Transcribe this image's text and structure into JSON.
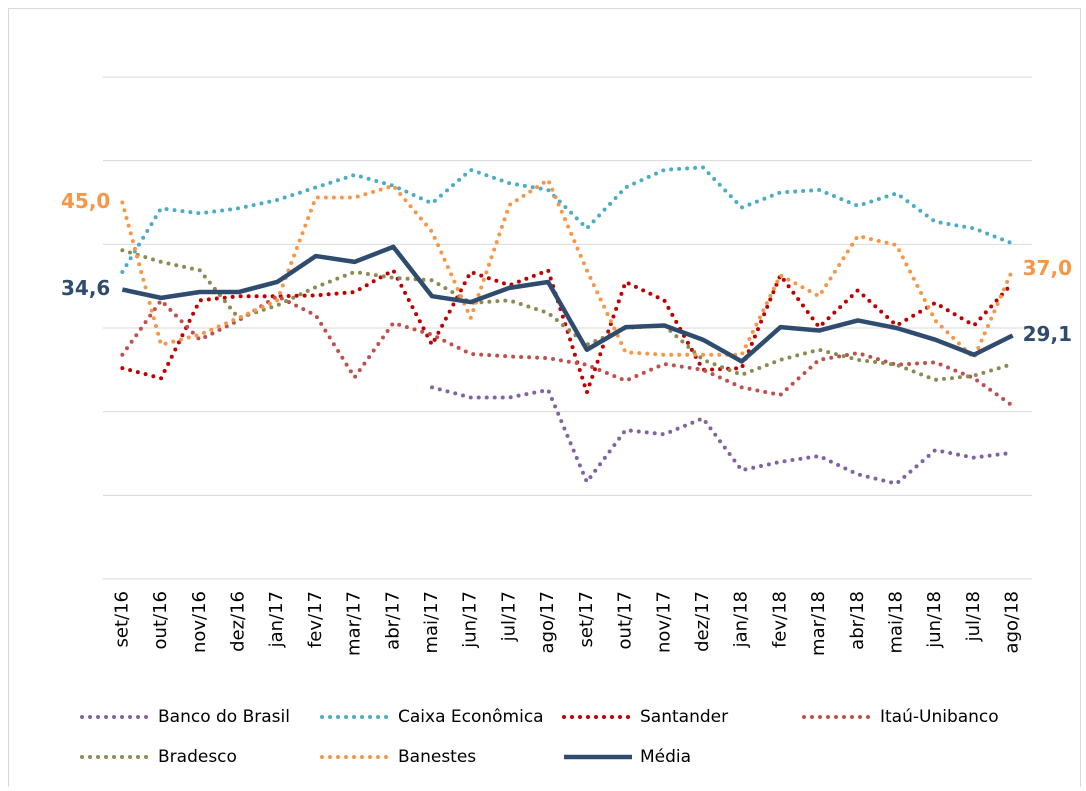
{
  "chart_data": {
    "type": "line",
    "categories": [
      "set/16",
      "out/16",
      "nov/16",
      "dez/16",
      "jan/17",
      "fev/17",
      "mar/17",
      "abr/17",
      "mai/17",
      "jun/17",
      "jul/17",
      "ago/17",
      "set/17",
      "out/17",
      "nov/17",
      "dez/17",
      "jan/18",
      "fev/18",
      "mar/18",
      "abr/18",
      "mai/18",
      "jun/18",
      "jul/18",
      "ago/18"
    ],
    "ylim": [
      0,
      60
    ],
    "yticks": [
      0,
      10,
      20,
      30,
      40,
      50,
      60
    ],
    "grid": true,
    "series": [
      {
        "name": "Banco do Brasil",
        "color": "#8064a2",
        "style": "dotted",
        "values": [
          null,
          null,
          null,
          null,
          null,
          null,
          null,
          null,
          22.9,
          21.7,
          21.7,
          22.6,
          11.6,
          17.8,
          17.3,
          19.2,
          13.0,
          14.0,
          14.7,
          12.5,
          11.4,
          15.4,
          14.5,
          15.1
        ]
      },
      {
        "name": "Caixa Econômica",
        "color": "#4bacc6",
        "style": "dotted",
        "values": [
          36.7,
          44.3,
          43.7,
          44.3,
          45.3,
          46.8,
          48.3,
          47.0,
          44.9,
          48.9,
          47.3,
          46.5,
          41.9,
          46.8,
          48.9,
          49.2,
          44.4,
          46.2,
          46.5,
          44.6,
          46.1,
          42.7,
          41.9,
          40.1
        ]
      },
      {
        "name": "Santander",
        "color": "#c00000",
        "style": "dotted",
        "values": [
          25.2,
          24.0,
          33.3,
          33.8,
          33.8,
          33.9,
          34.3,
          36.9,
          28.0,
          36.7,
          35.1,
          36.9,
          22.3,
          35.5,
          33.3,
          25.0,
          25.2,
          36.3,
          30.1,
          34.5,
          30.3,
          33.0,
          30.3,
          35.4
        ]
      },
      {
        "name": "Itaú-Unibanco",
        "color": "#c0504d",
        "style": "dotted",
        "values": [
          26.8,
          33.3,
          28.6,
          30.9,
          33.8,
          31.5,
          24.1,
          30.6,
          29.2,
          26.9,
          26.6,
          26.4,
          25.6,
          23.7,
          25.7,
          25.0,
          22.9,
          22.0,
          26.2,
          27.0,
          25.6,
          25.9,
          24.0,
          20.7
        ]
      },
      {
        "name": "Bradesco",
        "color": "#8c8a52",
        "style": "dotted",
        "values": [
          39.3,
          37.9,
          36.9,
          31.2,
          32.7,
          34.9,
          36.7,
          36.0,
          35.7,
          33.0,
          33.3,
          31.8,
          28.0,
          30.0,
          30.3,
          26.2,
          24.4,
          26.2,
          27.4,
          26.2,
          25.6,
          23.8,
          24.3,
          25.7
        ]
      },
      {
        "name": "Banestes",
        "color": "#f79646",
        "style": "dotted",
        "values": [
          45.0,
          28.0,
          29.2,
          31.2,
          33.3,
          45.6,
          45.6,
          47.0,
          41.5,
          31.2,
          44.7,
          47.7,
          36.9,
          27.1,
          26.8,
          26.8,
          26.8,
          36.3,
          33.8,
          41.0,
          39.9,
          30.9,
          26.4,
          37.0
        ],
        "value_labels": [
          "45,0",
          null,
          null,
          null,
          null,
          null,
          null,
          null,
          null,
          null,
          null,
          null,
          null,
          null,
          null,
          null,
          null,
          null,
          null,
          null,
          null,
          null,
          null,
          "37,0"
        ]
      },
      {
        "name": "Média",
        "color": "#2f4b6e",
        "style": "solid",
        "values": [
          34.6,
          33.6,
          34.3,
          34.3,
          35.5,
          38.6,
          37.9,
          39.7,
          33.8,
          33.1,
          34.8,
          35.5,
          27.4,
          30.1,
          30.3,
          28.6,
          26.0,
          30.1,
          29.7,
          30.9,
          30.0,
          28.6,
          26.8,
          29.1
        ],
        "value_labels": [
          "34,6",
          null,
          null,
          null,
          null,
          null,
          null,
          null,
          null,
          null,
          null,
          null,
          null,
          null,
          null,
          null,
          null,
          null,
          null,
          null,
          null,
          null,
          null,
          "29,1"
        ]
      }
    ]
  }
}
